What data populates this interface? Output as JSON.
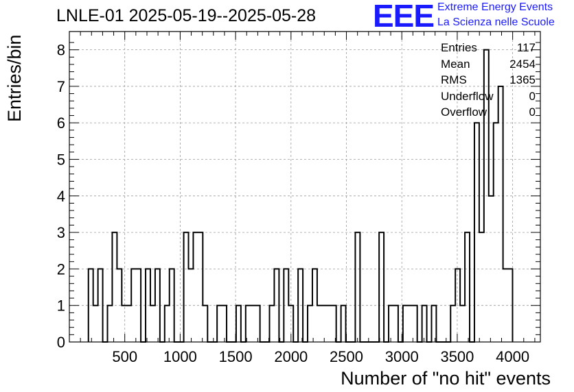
{
  "chart_data": {
    "type": "histogram",
    "title": "LNLE-01 2025-05-19--2025-05-28",
    "xlabel": "Number of \"no hit\" events",
    "ylabel": "Entries/bin",
    "xlim": [
      0,
      4250
    ],
    "ylim": [
      0,
      8.5
    ],
    "x_ticks": [
      500,
      1000,
      1500,
      2000,
      2500,
      3000,
      3500,
      4000
    ],
    "y_ticks": [
      0,
      1,
      2,
      3,
      4,
      5,
      6,
      7,
      8
    ],
    "grid": true,
    "bin_width": 43,
    "bins": [
      {
        "x": 172,
        "y": 2
      },
      {
        "x": 215,
        "y": 1
      },
      {
        "x": 258,
        "y": 2
      },
      {
        "x": 301,
        "y": 0
      },
      {
        "x": 344,
        "y": 1
      },
      {
        "x": 387,
        "y": 3
      },
      {
        "x": 430,
        "y": 2
      },
      {
        "x": 473,
        "y": 1
      },
      {
        "x": 516,
        "y": 1
      },
      {
        "x": 559,
        "y": 2
      },
      {
        "x": 602,
        "y": 2
      },
      {
        "x": 645,
        "y": 0
      },
      {
        "x": 688,
        "y": 2
      },
      {
        "x": 731,
        "y": 1
      },
      {
        "x": 774,
        "y": 2
      },
      {
        "x": 817,
        "y": 0
      },
      {
        "x": 860,
        "y": 1
      },
      {
        "x": 903,
        "y": 2
      },
      {
        "x": 946,
        "y": 0
      },
      {
        "x": 989,
        "y": 0
      },
      {
        "x": 1032,
        "y": 3
      },
      {
        "x": 1075,
        "y": 2
      },
      {
        "x": 1118,
        "y": 3
      },
      {
        "x": 1161,
        "y": 3
      },
      {
        "x": 1204,
        "y": 1
      },
      {
        "x": 1247,
        "y": 0
      },
      {
        "x": 1290,
        "y": 0
      },
      {
        "x": 1333,
        "y": 1
      },
      {
        "x": 1376,
        "y": 1
      },
      {
        "x": 1419,
        "y": 0
      },
      {
        "x": 1462,
        "y": 0
      },
      {
        "x": 1505,
        "y": 1
      },
      {
        "x": 1548,
        "y": 0
      },
      {
        "x": 1591,
        "y": 1
      },
      {
        "x": 1634,
        "y": 1
      },
      {
        "x": 1677,
        "y": 1
      },
      {
        "x": 1720,
        "y": 0
      },
      {
        "x": 1763,
        "y": 0
      },
      {
        "x": 1806,
        "y": 1
      },
      {
        "x": 1849,
        "y": 2
      },
      {
        "x": 1892,
        "y": 0
      },
      {
        "x": 1935,
        "y": 2
      },
      {
        "x": 1978,
        "y": 1
      },
      {
        "x": 2021,
        "y": 0
      },
      {
        "x": 2064,
        "y": 2
      },
      {
        "x": 2107,
        "y": 0
      },
      {
        "x": 2150,
        "y": 1
      },
      {
        "x": 2193,
        "y": 2
      },
      {
        "x": 2236,
        "y": 1
      },
      {
        "x": 2279,
        "y": 1
      },
      {
        "x": 2322,
        "y": 1
      },
      {
        "x": 2365,
        "y": 1
      },
      {
        "x": 2408,
        "y": 0
      },
      {
        "x": 2451,
        "y": 1
      },
      {
        "x": 2494,
        "y": 0
      },
      {
        "x": 2537,
        "y": 0
      },
      {
        "x": 2580,
        "y": 3
      },
      {
        "x": 2623,
        "y": 0
      },
      {
        "x": 2666,
        "y": 0
      },
      {
        "x": 2709,
        "y": 0
      },
      {
        "x": 2752,
        "y": 0
      },
      {
        "x": 2795,
        "y": 3
      },
      {
        "x": 2838,
        "y": 0
      },
      {
        "x": 2881,
        "y": 1
      },
      {
        "x": 2924,
        "y": 1
      },
      {
        "x": 2967,
        "y": 0
      },
      {
        "x": 3010,
        "y": 1
      },
      {
        "x": 3053,
        "y": 1
      },
      {
        "x": 3096,
        "y": 1
      },
      {
        "x": 3139,
        "y": 0
      },
      {
        "x": 3182,
        "y": 1
      },
      {
        "x": 3225,
        "y": 0
      },
      {
        "x": 3268,
        "y": 1
      },
      {
        "x": 3311,
        "y": 0
      },
      {
        "x": 3354,
        "y": 0
      },
      {
        "x": 3397,
        "y": 0
      },
      {
        "x": 3440,
        "y": 1
      },
      {
        "x": 3483,
        "y": 2
      },
      {
        "x": 3526,
        "y": 1
      },
      {
        "x": 3569,
        "y": 3
      },
      {
        "x": 3612,
        "y": 0
      },
      {
        "x": 3655,
        "y": 6
      },
      {
        "x": 3698,
        "y": 3
      },
      {
        "x": 3741,
        "y": 8
      },
      {
        "x": 3784,
        "y": 4
      },
      {
        "x": 3827,
        "y": 6
      },
      {
        "x": 3870,
        "y": 7
      },
      {
        "x": 3913,
        "y": 2
      },
      {
        "x": 3956,
        "y": 2
      }
    ]
  },
  "stats": [
    {
      "label": "Entries",
      "value": "117"
    },
    {
      "label": "Mean",
      "value": "2454"
    },
    {
      "label": "RMS",
      "value": "1365"
    },
    {
      "label": "Underflow",
      "value": "0"
    },
    {
      "label": "Overflow",
      "value": "0"
    }
  ],
  "logo": {
    "text": "EEE",
    "line1": "Extreme Energy Events",
    "line2": "La Scienza nelle Scuole",
    "color": "#1a1aff"
  }
}
